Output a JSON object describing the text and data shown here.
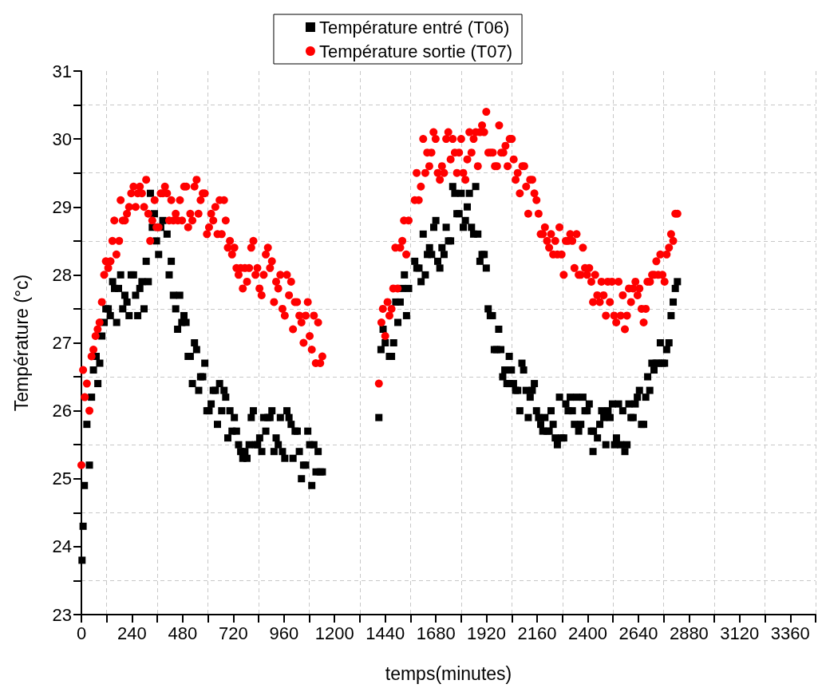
{
  "chart_data": {
    "type": "scatter",
    "xlabel": "temps(minutes)",
    "ylabel": "Température (°c)",
    "xlim": [
      0,
      3480
    ],
    "ylim": [
      23,
      31
    ],
    "xticks": [
      0,
      {
        "value": 120,
        "label": null
      },
      240,
      {
        "value": 360,
        "label": null
      },
      480,
      {
        "value": 600,
        "label": null
      },
      720,
      {
        "value": 840,
        "label": null
      },
      960,
      {
        "value": 1080,
        "label": null
      },
      1200,
      {
        "value": 1320,
        "label": null
      },
      1440,
      {
        "value": 1560,
        "label": null
      },
      1680,
      {
        "value": 1800,
        "label": null
      },
      1920,
      {
        "value": 2040,
        "label": null
      },
      2160,
      {
        "value": 2280,
        "label": null
      },
      2400,
      {
        "value": 2520,
        "label": null
      },
      2640,
      {
        "value": 2760,
        "label": null
      },
      2880,
      {
        "value": 3000,
        "label": null
      },
      3120,
      {
        "value": 3240,
        "label": null
      },
      3360,
      {
        "value": 3480,
        "label": null
      }
    ],
    "yticks": [
      23,
      {
        "value": 23.5,
        "label": null
      },
      24,
      {
        "value": 24.5,
        "label": null
      },
      25,
      {
        "value": 25.5,
        "label": null
      },
      26,
      {
        "value": 26.5,
        "label": null
      },
      27,
      {
        "value": 27.5,
        "label": null
      },
      28,
      {
        "value": 28.5,
        "label": null
      },
      29,
      {
        "value": 29.5,
        "label": null
      },
      30,
      {
        "value": 30.5,
        "label": null
      },
      31
    ],
    "grid": true,
    "legend": "top",
    "series": [
      {
        "name": "Température entré (T06)",
        "color": "#000000",
        "marker": "square",
        "x": [
          3,
          8,
          14,
          38,
          26,
          48,
          57,
          70,
          78,
          87,
          97,
          108,
          116,
          127,
          137,
          148,
          157,
          167,
          176,
          186,
          196,
          206,
          216,
          226,
          236,
          247,
          257,
          267,
          277,
          287,
          297,
          307,
          317,
          327,
          336,
          346,
          356,
          366,
          376,
          386,
          406,
          416,
          426,
          436,
          447,
          456,
          466,
          476,
          486,
          496,
          506,
          516,
          526,
          536,
          546,
          556,
          565,
          575,
          585,
          595,
          605,
          615,
          625,
          635,
          645,
          655,
          665,
          676,
          684,
          694,
          704,
          714,
          725,
          735,
          745,
          755,
          765,
          775,
          785,
          795,
          805,
          815,
          825,
          835,
          845,
          855,
          864,
          874,
          884,
          894,
          903,
          913,
          923,
          933,
          943,
          953,
          964,
          974,
          984,
          994,
          1003,
          1013,
          1023,
          1033,
          1043,
          1053,
          1063,
          1073,
          1082,
          1092,
          1102,
          1112,
          1122,
          1132,
          1142,
          1410,
          1420,
          1430,
          1440,
          1460,
          1470,
          1480,
          1490,
          1500,
          1511,
          1521,
          1531,
          1541,
          1551,
          1580,
          1590,
          1600,
          1610,
          1620,
          1630,
          1640,
          1650,
          1660,
          1670,
          1680,
          1689,
          1699,
          1709,
          1719,
          1729,
          1740,
          1750,
          1760,
          1770,
          1780,
          1790,
          1800,
          1810,
          1820,
          1829,
          1839,
          1849,
          1859,
          1869,
          1879,
          1889,
          1899,
          1909,
          1919,
          1928,
          1938,
          1948,
          1957,
          1968,
          1978,
          1988,
          1997,
          2007,
          2017,
          2028,
          2028,
          2038,
          2048,
          2058,
          2068,
          2078,
          2088,
          2096,
          2108,
          2118,
          2127,
          2137,
          2147,
          2157,
          2167,
          2177,
          2187,
          2197,
          2207,
          2217,
          2226,
          2236,
          2246,
          2256,
          2266,
          2276,
          2286,
          2296,
          2307,
          2317,
          2327,
          2337,
          2347,
          2357,
          2367,
          2377,
          2387,
          2397,
          2407,
          2417,
          2425,
          2427,
          2446,
          2457,
          2466,
          2476,
          2486,
          2496,
          2506,
          2517,
          2527,
          2536,
          2546,
          2556,
          2566,
          2576,
          2586,
          2595,
          2605,
          2615,
          2625,
          2635,
          2645,
          2655,
          2665,
          2675,
          2684,
          2694,
          2704,
          2714,
          2724,
          2734,
          2744,
          2754,
          2764,
          2774,
          2785,
          2795,
          2805,
          2815,
          2825
        ],
        "values": [
          23.8,
          24.3,
          24.9,
          25.2,
          25.8,
          26.2,
          26.6,
          26.8,
          26.4,
          26.7,
          27.1,
          27.3,
          27.5,
          27.5,
          27.4,
          27.9,
          27.8,
          27.3,
          27.8,
          28.0,
          27.5,
          27.7,
          27.6,
          27.4,
          28.0,
          28.0,
          27.7,
          27.4,
          27.8,
          27.9,
          27.5,
          28.2,
          27.9,
          29.2,
          28.7,
          28.9,
          28.5,
          28.3,
          28.7,
          28.8,
          28.6,
          28.0,
          28.2,
          27.7,
          27.5,
          27.2,
          27.7,
          27.3,
          27.4,
          27.3,
          26.8,
          26.8,
          26.4,
          27.0,
          26.9,
          26.3,
          26.5,
          26.5,
          26.7,
          26.0,
          26.0,
          26.1,
          26.3,
          26.3,
          25.8,
          26.4,
          26.0,
          26.3,
          26.2,
          25.6,
          26.0,
          25.7,
          25.9,
          25.7,
          25.5,
          25.4,
          25.3,
          25.4,
          25.3,
          25.5,
          25.9,
          26.0,
          25.5,
          25.5,
          25.6,
          25.4,
          25.9,
          25.7,
          25.9,
          25.9,
          26.0,
          25.4,
          25.6,
          25.5,
          25.9,
          25.4,
          25.3,
          26.0,
          25.9,
          25.8,
          25.3,
          25.7,
          25.7,
          25.4,
          25.0,
          25.2,
          25.2,
          25.7,
          25.5,
          24.9,
          25.5,
          25.1,
          25.4,
          25.1,
          25.1,
          25.9,
          26.9,
          27.2,
          27.0,
          26.8,
          26.8,
          27.0,
          27.6,
          27.3,
          27.6,
          27.8,
          28.0,
          27.4,
          27.8,
          28.2,
          28.1,
          28.1,
          27.9,
          28.6,
          28.0,
          28.3,
          28.4,
          28.3,
          28.7,
          28.8,
          28.2,
          28.1,
          28.4,
          28.3,
          28.7,
          28.5,
          28.5,
          29.3,
          29.2,
          28.9,
          28.9,
          29.2,
          28.7,
          28.8,
          29.0,
          29.2,
          28.7,
          28.6,
          29.3,
          28.6,
          28.2,
          28.3,
          28.3,
          28.1,
          27.5,
          27.4,
          27.4,
          26.9,
          26.9,
          27.2,
          26.9,
          26.5,
          26.6,
          26.4,
          26.8,
          26.4,
          26.6,
          26.4,
          26.3,
          26.3,
          26.0,
          26.7,
          26.6,
          26.3,
          25.9,
          26.2,
          26.3,
          26.4,
          26.0,
          25.9,
          25.8,
          25.7,
          25.9,
          25.7,
          25.7,
          26.0,
          25.8,
          25.6,
          25.5,
          26.2,
          25.6,
          25.6,
          26.1,
          26.0,
          26.2,
          26.0,
          25.8,
          26.2,
          25.7,
          25.8,
          26.2,
          26.0,
          26.0,
          26.1,
          25.7,
          25.4,
          25.7,
          25.6,
          25.8,
          26.0,
          25.9,
          25.5,
          26.0,
          25.9,
          26.1,
          25.5,
          25.6,
          26.1,
          25.5,
          26.0,
          25.4,
          25.5,
          26.1,
          25.9,
          25.9,
          26.1,
          26.2,
          26.3,
          25.8,
          25.8,
          26.2,
          26.5,
          26.3,
          26.7,
          26.6,
          26.7,
          26.7,
          27.0,
          26.7,
          26.7,
          26.9,
          27.0,
          27.4,
          27.6,
          27.8,
          27.9
        ]
      },
      {
        "name": "Température sortie (T07)",
        "color": "#ff0000",
        "marker": "circle",
        "x": [
          0,
          8,
          16,
          26,
          38,
          48,
          57,
          67,
          77,
          86,
          97,
          108,
          116,
          127,
          138,
          147,
          156,
          166,
          179,
          186,
          196,
          206,
          216,
          226,
          236,
          247,
          257,
          267,
          277,
          287,
          297,
          307,
          317,
          326,
          336,
          347,
          356,
          366,
          376,
          386,
          396,
          406,
          416,
          426,
          436,
          447,
          457,
          467,
          477,
          487,
          497,
          506,
          516,
          526,
          536,
          546,
          555,
          565,
          575,
          585,
          595,
          605,
          615,
          625,
          635,
          645,
          655,
          665,
          676,
          684,
          694,
          704,
          714,
          725,
          735,
          745,
          755,
          765,
          775,
          785,
          795,
          805,
          815,
          825,
          834,
          844,
          854,
          864,
          874,
          884,
          894,
          903,
          913,
          923,
          933,
          943,
          953,
          964,
          974,
          984,
          994,
          1003,
          1012,
          1022,
          1033,
          1043,
          1053,
          1063,
          1073,
          1082,
          1092,
          1102,
          1111,
          1122,
          1132,
          1142,
          1410,
          1422,
          1429,
          1440,
          1451,
          1460,
          1470,
          1478,
          1488,
          1499,
          1511,
          1521,
          1529,
          1540,
          1551,
          1580,
          1589,
          1599,
          1609,
          1620,
          1630,
          1639,
          1649,
          1659,
          1669,
          1679,
          1689,
          1699,
          1709,
          1719,
          1729,
          1739,
          1750,
          1760,
          1770,
          1780,
          1790,
          1800,
          1810,
          1820,
          1829,
          1839,
          1849,
          1859,
          1869,
          1879,
          1889,
          1899,
          1909,
          1919,
          1929,
          1940,
          1950,
          1960,
          1970,
          1980,
          1990,
          2000,
          2010,
          2020,
          2030,
          2040,
          2049,
          2058,
          2068,
          2078,
          2090,
          2099,
          2108,
          2118,
          2127,
          2137,
          2147,
          2157,
          2167,
          2177,
          2187,
          2197,
          2207,
          2217,
          2226,
          2236,
          2246,
          2256,
          2266,
          2276,
          2286,
          2296,
          2307,
          2317,
          2327,
          2337,
          2347,
          2357,
          2367,
          2377,
          2387,
          2397,
          2407,
          2417,
          2425,
          2435,
          2445,
          2457,
          2465,
          2475,
          2486,
          2495,
          2505,
          2515,
          2525,
          2535,
          2546,
          2556,
          2566,
          2576,
          2586,
          2595,
          2605,
          2615,
          2626,
          2636,
          2645,
          2655,
          2665,
          2675,
          2683,
          2695,
          2705,
          2715,
          2725,
          2734,
          2744,
          2754,
          2764,
          2774,
          2785,
          2795,
          2805,
          2815,
          2825
        ],
        "values": [
          25.2,
          26.6,
          26.2,
          26.4,
          26.0,
          26.8,
          26.9,
          27.1,
          27.2,
          27.3,
          27.6,
          28.0,
          28.2,
          28.1,
          28.2,
          28.5,
          28.8,
          28.3,
          28.5,
          29.1,
          28.8,
          28.8,
          28.9,
          29.0,
          29.2,
          29.3,
          29.0,
          29.2,
          29.3,
          29.2,
          29.0,
          29.4,
          28.9,
          28.5,
          28.8,
          29.1,
          28.7,
          28.7,
          29.2,
          29.2,
          29.3,
          29.2,
          28.8,
          29.1,
          28.8,
          28.9,
          28.8,
          29.1,
          28.8,
          29.3,
          29.3,
          28.7,
          28.9,
          28.8,
          29.3,
          29.4,
          28.9,
          29.1,
          29.2,
          29.2,
          28.6,
          28.7,
          28.9,
          28.8,
          29.0,
          28.6,
          29.1,
          28.6,
          29.1,
          28.8,
          28.4,
          28.5,
          28.3,
          28.4,
          28.1,
          28.0,
          28.1,
          27.8,
          28.1,
          27.9,
          28.1,
          28.4,
          28.5,
          28.0,
          28.1,
          27.8,
          27.7,
          28.0,
          28.3,
          28.4,
          28.1,
          28.2,
          27.6,
          27.9,
          27.8,
          28.0,
          27.5,
          27.4,
          28.0,
          27.7,
          27.9,
          27.2,
          27.6,
          27.6,
          27.4,
          27.3,
          27.0,
          27.4,
          27.6,
          27.1,
          26.9,
          27.4,
          26.7,
          27.3,
          26.7,
          26.8,
          26.4,
          27.3,
          27.5,
          27.1,
          27.6,
          27.4,
          27.5,
          27.8,
          28.4,
          27.8,
          28.4,
          28.5,
          28.8,
          28.3,
          28.8,
          29.1,
          29.5,
          29.1,
          29.3,
          30.0,
          29.5,
          29.8,
          29.6,
          29.8,
          30.1,
          30.0,
          29.5,
          29.4,
          29.6,
          29.5,
          30.0,
          30.1,
          29.7,
          30.0,
          29.8,
          29.5,
          29.8,
          30.0,
          29.5,
          29.4,
          29.7,
          30.1,
          29.8,
          30.0,
          30.1,
          29.6,
          30.1,
          30.2,
          30.1,
          30.4,
          29.8,
          29.8,
          29.8,
          29.6,
          29.6,
          30.2,
          29.8,
          29.8,
          29.9,
          29.6,
          30.0,
          30.0,
          29.7,
          29.4,
          29.5,
          29.2,
          29.6,
          29.6,
          29.3,
          28.9,
          29.4,
          29.4,
          29.2,
          29.1,
          28.9,
          28.6,
          28.6,
          28.7,
          28.5,
          28.4,
          28.6,
          28.3,
          28.5,
          28.3,
          28.7,
          28.3,
          28.0,
          28.5,
          28.5,
          28.6,
          28.5,
          28.1,
          28.6,
          28.0,
          28.0,
          28.4,
          28.1,
          28.0,
          28.1,
          27.9,
          27.6,
          28.0,
          27.7,
          27.6,
          27.9,
          27.7,
          27.4,
          27.9,
          27.6,
          27.9,
          27.4,
          27.3,
          27.9,
          27.4,
          27.7,
          27.2,
          27.4,
          27.8,
          27.6,
          27.8,
          27.9,
          27.7,
          27.8,
          27.5,
          27.3,
          27.5,
          27.9,
          27.9,
          28.0,
          28.0,
          28.2,
          28.0,
          28.3,
          28.0,
          27.9,
          28.3,
          28.4,
          28.6,
          28.5,
          28.9,
          28.9
        ]
      }
    ]
  }
}
